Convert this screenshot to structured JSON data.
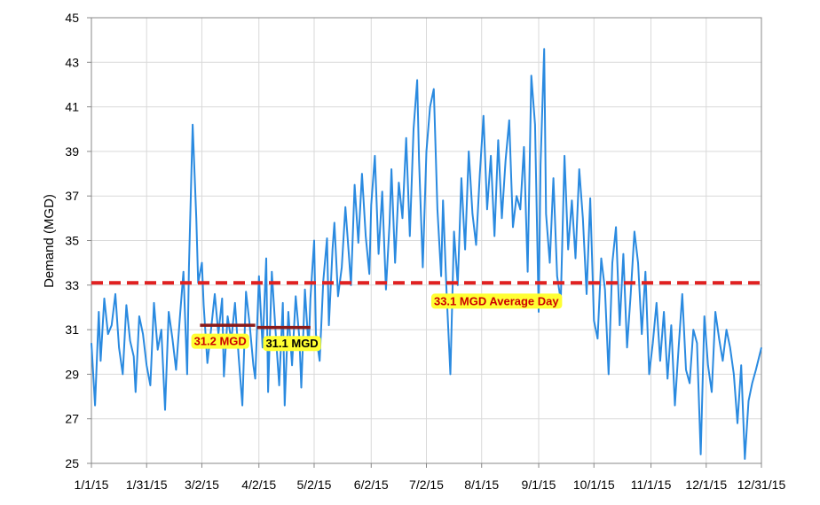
{
  "chart_data": {
    "type": "line",
    "xlabel": "",
    "ylabel": "Demand (MGD)",
    "ylim": [
      25,
      45
    ],
    "xlim": [
      "2015-01-01",
      "2015-12-31"
    ],
    "grid": true,
    "x_tick_labels": [
      "1/1/15",
      "1/31/15",
      "3/2/15",
      "4/2/15",
      "5/2/15",
      "6/2/15",
      "7/2/15",
      "8/1/15",
      "9/1/15",
      "10/1/15",
      "11/1/15",
      "12/1/15",
      "12/31/15"
    ],
    "y_tick_labels": [
      "25",
      "27",
      "29",
      "31",
      "33",
      "35",
      "37",
      "39",
      "41",
      "43",
      "45"
    ],
    "series": [
      {
        "color": "#2a8ae0",
        "points": [
          [
            "2015-01-01",
            30.4
          ],
          [
            "2015-01-03",
            27.6
          ],
          [
            "2015-01-05",
            31.8
          ],
          [
            "2015-01-06",
            29.6
          ],
          [
            "2015-01-08",
            32.4
          ],
          [
            "2015-01-10",
            30.8
          ],
          [
            "2015-01-12",
            31.2
          ],
          [
            "2015-01-14",
            32.6
          ],
          [
            "2015-01-16",
            30.2
          ],
          [
            "2015-01-18",
            29.0
          ],
          [
            "2015-01-20",
            32.1
          ],
          [
            "2015-01-22",
            30.5
          ],
          [
            "2015-01-24",
            29.8
          ],
          [
            "2015-01-25",
            28.2
          ],
          [
            "2015-01-27",
            31.6
          ],
          [
            "2015-01-29",
            30.8
          ],
          [
            "2015-01-31",
            29.4
          ],
          [
            "2015-02-02",
            28.5
          ],
          [
            "2015-02-04",
            32.2
          ],
          [
            "2015-02-06",
            30.1
          ],
          [
            "2015-02-08",
            31.0
          ],
          [
            "2015-02-10",
            27.4
          ],
          [
            "2015-02-12",
            31.8
          ],
          [
            "2015-02-14",
            30.6
          ],
          [
            "2015-02-16",
            29.2
          ],
          [
            "2015-02-18",
            31.5
          ],
          [
            "2015-02-20",
            33.6
          ],
          [
            "2015-02-22",
            29.0
          ],
          [
            "2015-02-23",
            33.8
          ],
          [
            "2015-02-25",
            40.2
          ],
          [
            "2015-02-27",
            36.0
          ],
          [
            "2015-02-28",
            33.1
          ],
          [
            "2015-03-02",
            34.0
          ],
          [
            "2015-03-03",
            32.1
          ],
          [
            "2015-03-05",
            29.5
          ],
          [
            "2015-03-07",
            31.0
          ],
          [
            "2015-03-09",
            32.6
          ],
          [
            "2015-03-11",
            30.8
          ],
          [
            "2015-03-13",
            32.4
          ],
          [
            "2015-03-14",
            28.9
          ],
          [
            "2015-03-16",
            31.6
          ],
          [
            "2015-03-18",
            30.5
          ],
          [
            "2015-03-20",
            32.2
          ],
          [
            "2015-03-22",
            29.8
          ],
          [
            "2015-03-24",
            27.6
          ],
          [
            "2015-03-26",
            32.7
          ],
          [
            "2015-03-28",
            31.2
          ],
          [
            "2015-03-30",
            29.4
          ],
          [
            "2015-03-31",
            28.8
          ],
          [
            "2015-04-02",
            33.4
          ],
          [
            "2015-04-04",
            30.2
          ],
          [
            "2015-04-06",
            34.2
          ],
          [
            "2015-04-07",
            28.2
          ],
          [
            "2015-04-09",
            33.6
          ],
          [
            "2015-04-11",
            31.0
          ],
          [
            "2015-04-13",
            28.5
          ],
          [
            "2015-04-15",
            32.2
          ],
          [
            "2015-04-16",
            27.6
          ],
          [
            "2015-04-18",
            31.8
          ],
          [
            "2015-04-20",
            29.4
          ],
          [
            "2015-04-22",
            32.5
          ],
          [
            "2015-04-24",
            30.6
          ],
          [
            "2015-04-25",
            28.4
          ],
          [
            "2015-04-27",
            32.8
          ],
          [
            "2015-04-29",
            30.1
          ],
          [
            "2015-04-30",
            32.4
          ],
          [
            "2015-05-02",
            35.0
          ],
          [
            "2015-05-03",
            30.8
          ],
          [
            "2015-05-05",
            29.6
          ],
          [
            "2015-05-07",
            33.2
          ],
          [
            "2015-05-09",
            35.1
          ],
          [
            "2015-05-10",
            31.2
          ],
          [
            "2015-05-12",
            34.6
          ],
          [
            "2015-05-13",
            35.8
          ],
          [
            "2015-05-15",
            32.5
          ],
          [
            "2015-05-17",
            33.8
          ],
          [
            "2015-05-19",
            36.5
          ],
          [
            "2015-05-21",
            34.2
          ],
          [
            "2015-05-22",
            33.0
          ],
          [
            "2015-05-24",
            37.5
          ],
          [
            "2015-05-26",
            34.9
          ],
          [
            "2015-05-28",
            38.0
          ],
          [
            "2015-05-30",
            35.2
          ],
          [
            "2015-06-01",
            33.5
          ],
          [
            "2015-06-02",
            36.6
          ],
          [
            "2015-06-04",
            38.8
          ],
          [
            "2015-06-06",
            34.4
          ],
          [
            "2015-06-08",
            37.2
          ],
          [
            "2015-06-10",
            32.8
          ],
          [
            "2015-06-12",
            35.8
          ],
          [
            "2015-06-13",
            38.2
          ],
          [
            "2015-06-15",
            34.0
          ],
          [
            "2015-06-17",
            37.6
          ],
          [
            "2015-06-19",
            36.0
          ],
          [
            "2015-06-21",
            39.6
          ],
          [
            "2015-06-23",
            35.2
          ],
          [
            "2015-06-25",
            40.0
          ],
          [
            "2015-06-27",
            42.2
          ],
          [
            "2015-06-28",
            38.6
          ],
          [
            "2015-06-30",
            33.8
          ],
          [
            "2015-07-02",
            39.0
          ],
          [
            "2015-07-04",
            41.0
          ],
          [
            "2015-07-06",
            41.8
          ],
          [
            "2015-07-08",
            36.4
          ],
          [
            "2015-07-10",
            33.4
          ],
          [
            "2015-07-11",
            36.8
          ],
          [
            "2015-07-13",
            32.6
          ],
          [
            "2015-07-15",
            29.0
          ],
          [
            "2015-07-17",
            35.4
          ],
          [
            "2015-07-19",
            33.0
          ],
          [
            "2015-07-21",
            37.8
          ],
          [
            "2015-07-23",
            34.6
          ],
          [
            "2015-07-25",
            39.0
          ],
          [
            "2015-07-27",
            36.2
          ],
          [
            "2015-07-29",
            34.8
          ],
          [
            "2015-07-31",
            38.0
          ],
          [
            "2015-08-02",
            40.6
          ],
          [
            "2015-08-04",
            36.4
          ],
          [
            "2015-08-06",
            38.8
          ],
          [
            "2015-08-08",
            35.2
          ],
          [
            "2015-08-10",
            39.5
          ],
          [
            "2015-08-12",
            36.0
          ],
          [
            "2015-08-14",
            38.6
          ],
          [
            "2015-08-16",
            40.4
          ],
          [
            "2015-08-18",
            35.6
          ],
          [
            "2015-08-20",
            37.0
          ],
          [
            "2015-08-22",
            36.4
          ],
          [
            "2015-08-24",
            39.2
          ],
          [
            "2015-08-26",
            33.6
          ],
          [
            "2015-08-28",
            42.4
          ],
          [
            "2015-08-30",
            40.2
          ],
          [
            "2015-09-01",
            31.8
          ],
          [
            "2015-09-02",
            38.4
          ],
          [
            "2015-09-04",
            43.6
          ],
          [
            "2015-09-05",
            36.2
          ],
          [
            "2015-09-07",
            34.0
          ],
          [
            "2015-09-09",
            37.8
          ],
          [
            "2015-09-11",
            33.4
          ],
          [
            "2015-09-13",
            32.3
          ],
          [
            "2015-09-15",
            38.8
          ],
          [
            "2015-09-17",
            34.6
          ],
          [
            "2015-09-19",
            36.8
          ],
          [
            "2015-09-21",
            34.2
          ],
          [
            "2015-09-23",
            38.2
          ],
          [
            "2015-09-25",
            36.0
          ],
          [
            "2015-09-27",
            32.6
          ],
          [
            "2015-09-29",
            36.9
          ],
          [
            "2015-10-01",
            31.4
          ],
          [
            "2015-10-03",
            30.6
          ],
          [
            "2015-10-05",
            34.2
          ],
          [
            "2015-10-07",
            32.8
          ],
          [
            "2015-10-09",
            29.0
          ],
          [
            "2015-10-11",
            34.0
          ],
          [
            "2015-10-13",
            35.6
          ],
          [
            "2015-10-15",
            31.2
          ],
          [
            "2015-10-17",
            34.4
          ],
          [
            "2015-10-19",
            30.2
          ],
          [
            "2015-10-21",
            32.6
          ],
          [
            "2015-10-23",
            35.4
          ],
          [
            "2015-10-25",
            34.0
          ],
          [
            "2015-10-27",
            30.8
          ],
          [
            "2015-10-29",
            33.6
          ],
          [
            "2015-10-31",
            29.0
          ],
          [
            "2015-11-02",
            30.4
          ],
          [
            "2015-11-04",
            32.2
          ],
          [
            "2015-11-06",
            29.6
          ],
          [
            "2015-11-08",
            31.8
          ],
          [
            "2015-11-10",
            28.8
          ],
          [
            "2015-11-12",
            31.2
          ],
          [
            "2015-11-14",
            27.6
          ],
          [
            "2015-11-16",
            30.2
          ],
          [
            "2015-11-18",
            32.6
          ],
          [
            "2015-11-20",
            29.2
          ],
          [
            "2015-11-22",
            28.6
          ],
          [
            "2015-11-24",
            31.0
          ],
          [
            "2015-11-26",
            30.4
          ],
          [
            "2015-11-28",
            25.4
          ],
          [
            "2015-11-30",
            31.6
          ],
          [
            "2015-12-02",
            29.4
          ],
          [
            "2015-12-04",
            28.2
          ],
          [
            "2015-12-06",
            31.8
          ],
          [
            "2015-12-08",
            30.6
          ],
          [
            "2015-12-10",
            29.6
          ],
          [
            "2015-12-12",
            31.0
          ],
          [
            "2015-12-14",
            30.2
          ],
          [
            "2015-12-16",
            29.0
          ],
          [
            "2015-12-18",
            26.8
          ],
          [
            "2015-12-20",
            29.4
          ],
          [
            "2015-12-22",
            25.2
          ],
          [
            "2015-12-24",
            27.8
          ],
          [
            "2015-12-26",
            28.6
          ],
          [
            "2015-12-28",
            29.2
          ],
          [
            "2015-12-31",
            30.2
          ]
        ]
      }
    ],
    "reference_lines": [
      {
        "kind": "average",
        "y": 33.1,
        "x_start": "2015-01-01",
        "x_end": "2015-12-31",
        "color": "#e02020",
        "style": "dashed"
      },
      {
        "kind": "segment",
        "y": 31.2,
        "x_start": "2015-03-01",
        "x_end": "2015-03-31",
        "color": "#8b1a1a",
        "style": "solid"
      },
      {
        "kind": "segment",
        "y": 31.1,
        "x_start": "2015-04-01",
        "x_end": "2015-04-30",
        "color": "#8b1a1a",
        "style": "solid"
      }
    ],
    "annotations": [
      {
        "text": "31.2 MGD",
        "x": "2015-03-12",
        "y": 30.5,
        "color": "#cc0000",
        "background": "#ffff33"
      },
      {
        "text": "31.1 MGD",
        "x": "2015-04-20",
        "y": 30.4,
        "color": "#000000",
        "background": "#ffff33"
      },
      {
        "text": "33.1 MGD Average Day",
        "x": "2015-08-09",
        "y": 32.3,
        "color": "#cc0000",
        "background": "#ffff33"
      }
    ]
  }
}
